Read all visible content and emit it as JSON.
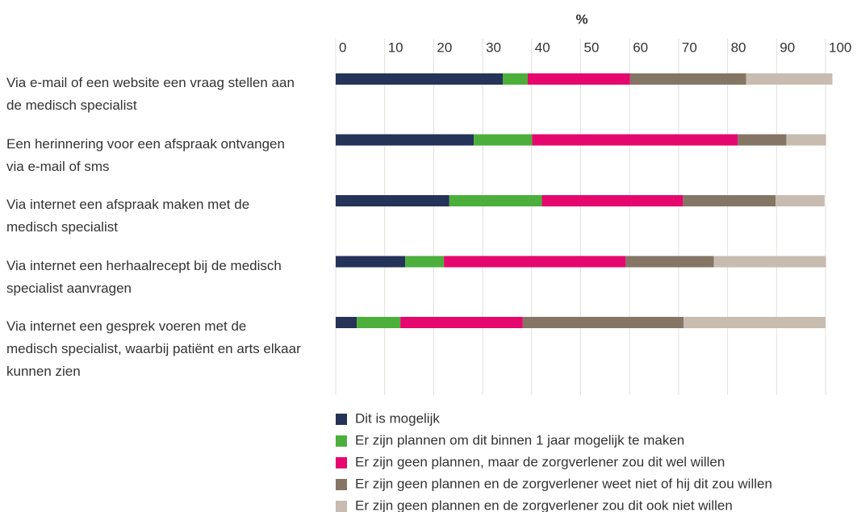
{
  "chart_data": {
    "type": "stacked_barh",
    "x_label": "%",
    "categories": [
      "Via e-mail of een website een vraag stellen aan de medisch specialist",
      "Een herinnering voor een afspraak ontvangen via e-mail of sms",
      "Via internet een afspraak maken met de medisch specialist",
      "Via internet een herhaalrecept bij de medisch specialist aanvragen",
      "Via internet een gesprek voeren met de medisch specialist, waarbij patiënt en arts elkaar kunnen zien"
    ],
    "series": [
      {
        "name": "Dit is mogelijk",
        "color": "#253358",
        "values": [
          34.1,
          28.2,
          23.2,
          14.2,
          4.3
        ]
      },
      {
        "name": "Er zijn plannen om dit binnen 1 jaar mogelijk te maken",
        "color": "#4caf3c",
        "values": [
          5.1,
          11.9,
          18.9,
          7.9,
          8.9
        ]
      },
      {
        "name": "Er zijn geen plannen, maar de zorgverlener zou dit wel willen",
        "color": "#e5076e",
        "values": [
          20.9,
          42.0,
          28.8,
          37.1,
          25.0
        ]
      },
      {
        "name": "Er zijn geen plannen en de zorgverlener weet niet of hij dit zou willen",
        "color": "#857565",
        "values": [
          23.7,
          9.9,
          18.9,
          18.0,
          32.8
        ]
      },
      {
        "name": "Er zijn geen plannen en de zorgverlener zou dit ook niet willen",
        "color": "#c8bbb0",
        "values": [
          17.6,
          8.1,
          10.0,
          22.9,
          29.0
        ]
      }
    ],
    "xlim": [
      0,
      100
    ],
    "xticks": [
      0,
      10,
      20,
      30,
      40,
      50,
      60,
      70,
      80,
      90,
      100
    ],
    "grid": true,
    "legend": "bottom"
  }
}
